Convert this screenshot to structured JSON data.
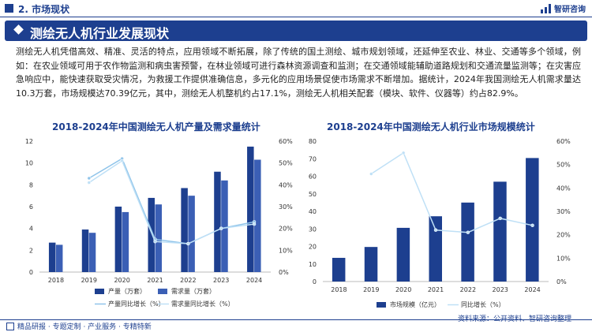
{
  "header": {
    "section": "2. 市场现状",
    "logo": "智研咨询"
  },
  "banner": {
    "title": "测绘无人机行业发展现状"
  },
  "paragraph": "测绘无人机凭借高效、精准、灵活的特点，应用领域不断拓展，除了传统的国土测绘、城市规划领域，还延伸至农业、林业、交通等多个领域，例如：在农业领域可用于农作物监测和病虫害预警，在林业领域可进行森林资源调查和监测；在交通领域能辅助道路规划和交通流量监测等；在灾害应急响应中，能快速获取受灾情况，为救援工作提供准确信息，多元化的应用场景促使市场需求不断增加。据统计，2024年我国测绘无人机需求量达10.3万套，市场规模达70.39亿元，其中，测绘无人机整机约占17.1%，测绘无人机相关配套（模块、软件、仪器等）约占82.9%。",
  "footer": {
    "text": "精品研报 · 专题定制 · 产业服务 · 专精特新"
  },
  "source": "资料来源：公开资料、智研咨询整理",
  "colors": {
    "navy": "#1d3f8f",
    "blue": "#3b5fb5",
    "lightblue": "#8fc4ea",
    "lightblue2": "#bfe0f6"
  },
  "chart_data": [
    {
      "type": "bar",
      "title": "2018-2024年中国测绘无人机产量及需求量统计",
      "categories": [
        "2018",
        "2019",
        "2020",
        "2021",
        "2022",
        "2023",
        "2024"
      ],
      "ylim": [
        0,
        12
      ],
      "y2lim": [
        0,
        0.6
      ],
      "yticks": [
        "0",
        "2",
        "4",
        "6",
        "8",
        "10",
        "12"
      ],
      "y2ticks": [
        "0%",
        "10%",
        "20%",
        "30%",
        "40%",
        "50%",
        "60%"
      ],
      "series": [
        {
          "name": "产量（万套）",
          "type": "bar",
          "axis": "left",
          "values": [
            2.7,
            3.9,
            6.0,
            6.8,
            7.7,
            9.2,
            11.5
          ]
        },
        {
          "name": "需求量（万套）",
          "type": "bar",
          "axis": "left",
          "values": [
            2.5,
            3.6,
            5.5,
            6.2,
            7.0,
            8.4,
            10.3
          ]
        },
        {
          "name": "产量同比增长（%）",
          "type": "line",
          "axis": "right",
          "values": [
            null,
            0.43,
            0.52,
            0.15,
            0.13,
            0.2,
            0.23
          ]
        },
        {
          "name": "需求量同比增长（%）",
          "type": "line",
          "axis": "right",
          "values": [
            null,
            0.41,
            0.51,
            0.14,
            0.13,
            0.2,
            0.22
          ]
        }
      ]
    },
    {
      "type": "bar",
      "title": "2018-2024年中国测绘无人机行业市场规模统计",
      "categories": [
        "2018",
        "2019",
        "2020",
        "2021",
        "2022",
        "2023",
        "2024"
      ],
      "ylim": [
        0,
        80
      ],
      "y2lim": [
        0,
        0.6
      ],
      "yticks": [
        "0",
        "10",
        "20",
        "30",
        "40",
        "50",
        "60",
        "70",
        "80"
      ],
      "y2ticks": [
        "0%",
        "10%",
        "20%",
        "30%",
        "40%",
        "50%",
        "60%"
      ],
      "series": [
        {
          "name": "市场规模（亿元）",
          "type": "bar",
          "axis": "left",
          "values": [
            13.5,
            19.7,
            30.6,
            37.2,
            45.0,
            56.9,
            70.39
          ]
        },
        {
          "name": "同比增长（%）",
          "type": "line",
          "axis": "right",
          "values": [
            null,
            0.46,
            0.55,
            0.22,
            0.21,
            0.27,
            0.24
          ]
        }
      ]
    }
  ]
}
